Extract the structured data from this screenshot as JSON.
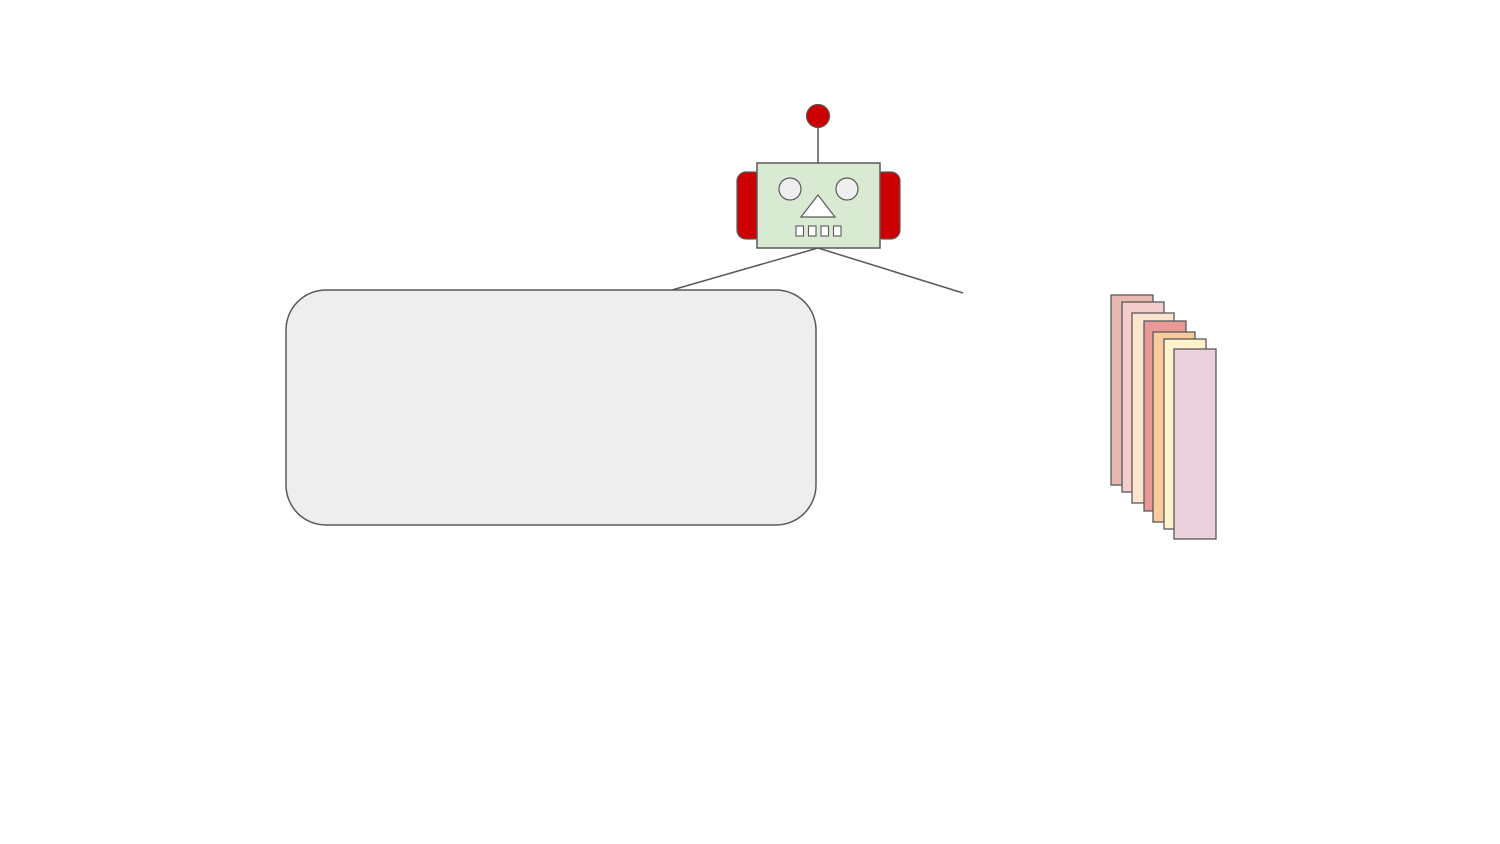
{
  "colors": {
    "background": "#ffffff",
    "stroke": "#595959",
    "robot_face": "#d9ead3",
    "robot_ears": "#cc0000",
    "robot_antenna_tip": "#cc0000",
    "robot_eyes": "#efefef",
    "robot_nose": "#ffffff",
    "panel_fill": "#eeeeee",
    "stack_cards": [
      "#e6b8af",
      "#f4cccc",
      "#fce5cd",
      "#ea9999",
      "#f9cb9c",
      "#fff2cc",
      "#ead1dc"
    ]
  },
  "icons": {
    "robot": "robot-icon",
    "stack": "document-stack-icon"
  }
}
